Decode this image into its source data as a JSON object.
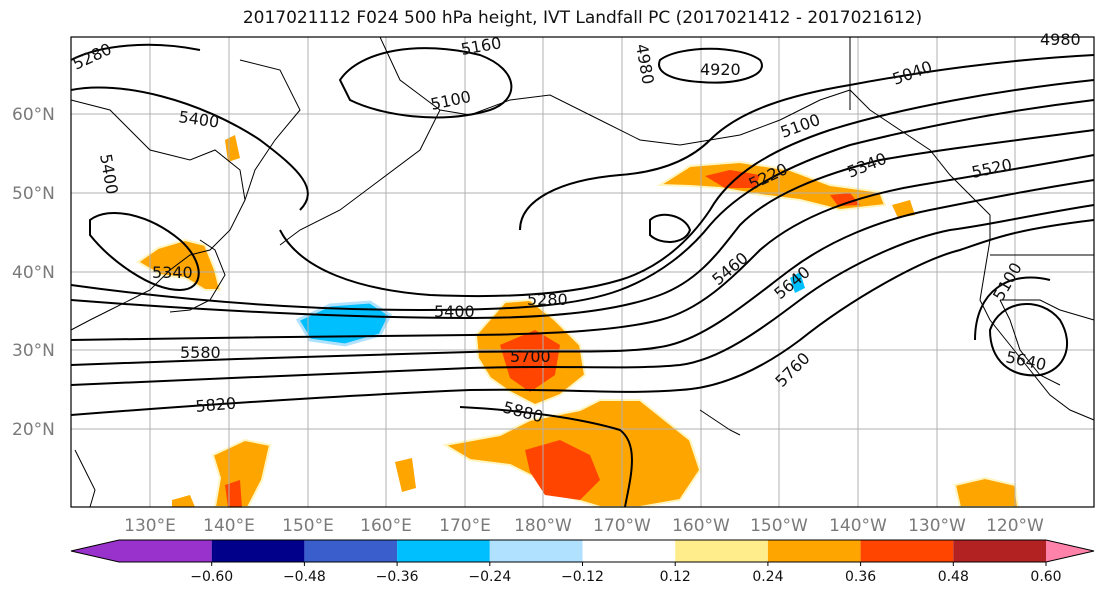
{
  "title": "2017021112 F024 500 hPa height, IVT Landfall PC (2017021412 - 2017021612)",
  "lat_labels": [
    "60°N",
    "50°N",
    "40°N",
    "30°N",
    "20°N"
  ],
  "lon_labels": [
    "130°E",
    "140°E",
    "150°E",
    "160°E",
    "170°E",
    "180°W",
    "170°W",
    "160°W",
    "150°W",
    "140°W",
    "130°W",
    "120°W"
  ],
  "colorbar": {
    "colors": [
      "#9932cc",
      "#00008b",
      "#3a5fcd",
      "#00bfff",
      "#b0e2ff",
      "#ffffff",
      "#ffec8b",
      "#ffa500",
      "#ff4500",
      "#b22222",
      "#ff82ab"
    ],
    "tick_labels": [
      "−0.60",
      "−0.48",
      "−0.36",
      "−0.24",
      "−0.12",
      "0.12",
      "0.24",
      "0.36",
      "0.48",
      "0.60"
    ]
  },
  "contour_labels": [
    "5280",
    "5160",
    "4920",
    "5040",
    "4980",
    "5100",
    "5400",
    "5400",
    "5100",
    "5220",
    "5340",
    "5520",
    "5340",
    "5460",
    "5640",
    "5400",
    "5280",
    "5700",
    "5580",
    "5100",
    "5640",
    "5820",
    "5880",
    "5760",
    "4980"
  ],
  "colors": {
    "land_line": "#000000",
    "grid": "#b0b0b0",
    "frame": "#000000"
  }
}
